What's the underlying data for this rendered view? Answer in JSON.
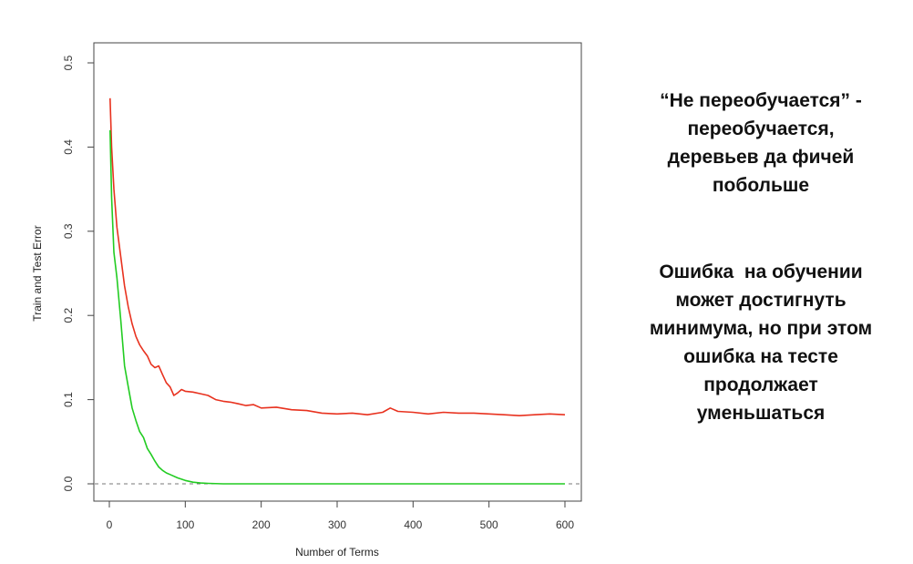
{
  "chart_data": {
    "type": "line",
    "title": "",
    "xlabel": "Number of Terms",
    "ylabel": "Train and Test Error",
    "xlim": [
      0,
      600
    ],
    "ylim": [
      0,
      0.5
    ],
    "xticks": [
      0,
      100,
      200,
      300,
      400,
      500,
      600
    ],
    "yticks": [
      0.0,
      0.1,
      0.2,
      0.3,
      0.4,
      0.5
    ],
    "ytick_labels": [
      "0.0",
      "0.1",
      "0.2",
      "0.3",
      "0.4",
      "0.5"
    ],
    "grid": false,
    "reference_line": {
      "y": 0.0,
      "style": "dashed",
      "color": "#777777"
    },
    "series": [
      {
        "color": "#e8321f",
        "x": [
          1,
          3,
          6,
          10,
          15,
          20,
          25,
          30,
          35,
          40,
          45,
          50,
          55,
          60,
          65,
          70,
          75,
          80,
          85,
          90,
          95,
          100,
          110,
          120,
          130,
          140,
          150,
          160,
          170,
          180,
          190,
          200,
          220,
          240,
          260,
          280,
          300,
          320,
          340,
          360,
          370,
          380,
          400,
          420,
          440,
          460,
          480,
          500,
          520,
          540,
          560,
          580,
          600
        ],
        "y": [
          0.458,
          0.4,
          0.35,
          0.305,
          0.27,
          0.235,
          0.21,
          0.19,
          0.175,
          0.165,
          0.158,
          0.152,
          0.142,
          0.138,
          0.14,
          0.13,
          0.12,
          0.115,
          0.105,
          0.108,
          0.112,
          0.11,
          0.109,
          0.107,
          0.105,
          0.1,
          0.098,
          0.097,
          0.095,
          0.093,
          0.094,
          0.09,
          0.091,
          0.088,
          0.087,
          0.084,
          0.083,
          0.084,
          0.082,
          0.085,
          0.09,
          0.086,
          0.085,
          0.083,
          0.085,
          0.084,
          0.084,
          0.083,
          0.082,
          0.081,
          0.082,
          0.083,
          0.082
        ]
      },
      {
        "color": "#22cc22",
        "x": [
          1,
          3,
          6,
          10,
          15,
          20,
          25,
          30,
          35,
          40,
          45,
          50,
          55,
          60,
          65,
          70,
          75,
          80,
          90,
          100,
          110,
          120,
          130,
          150,
          200,
          300,
          400,
          500,
          600
        ],
        "y": [
          0.42,
          0.34,
          0.275,
          0.245,
          0.195,
          0.14,
          0.115,
          0.09,
          0.075,
          0.062,
          0.055,
          0.042,
          0.035,
          0.027,
          0.02,
          0.016,
          0.013,
          0.011,
          0.007,
          0.004,
          0.002,
          0.001,
          0.0005,
          0.0,
          0.0,
          0.0,
          0.0,
          0.0,
          0.0
        ]
      }
    ]
  },
  "annotation": {
    "paragraph1": [
      "“Не переобучается” -",
      "переобучается,",
      "деревьев да фичей",
      "побольше"
    ],
    "paragraph2": [
      "Ошибка  на обучении",
      "может достигнуть",
      "минимума, но при этом",
      "ошибка на тесте",
      "продолжает",
      "уменьшаться"
    ]
  }
}
